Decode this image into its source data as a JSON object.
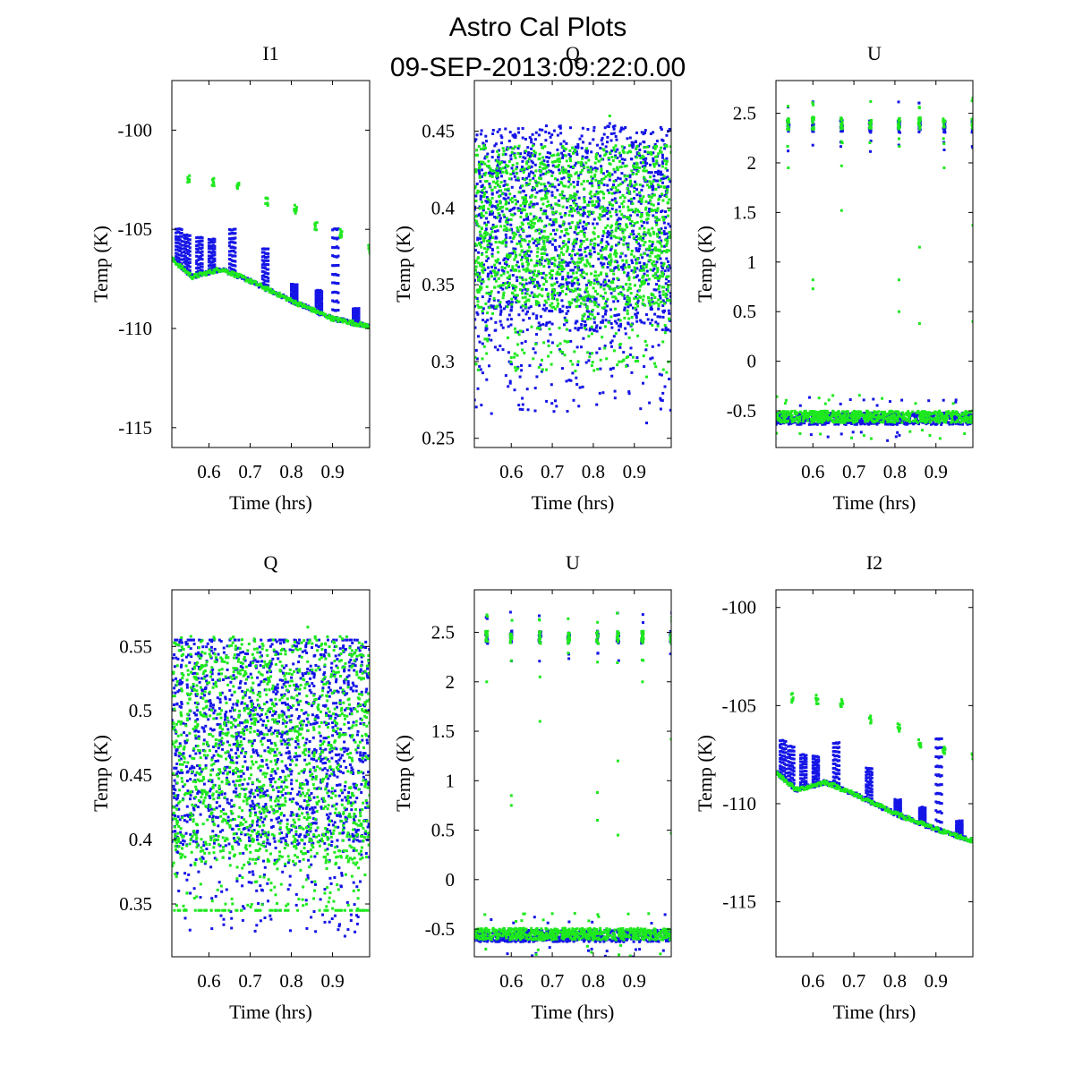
{
  "figure": {
    "title": "Astro Cal Plots",
    "subtitle": "09-SEP-2013:09:22:0.00"
  },
  "colors": {
    "blue_series": "#1414e6",
    "green_series": "#1ee81e"
  },
  "chart_data": [
    {
      "type": "scatter",
      "title": "I1",
      "xlabel": "Time (hrs)",
      "ylabel": "Temp (K)",
      "xlim": [
        0.51,
        0.99
      ],
      "ylim": [
        -116,
        -97.5
      ],
      "xticks": [
        0.6,
        0.7,
        0.8,
        0.9
      ],
      "xtick_labels": [
        "0.6",
        "0.7",
        "0.8",
        "0.9"
      ],
      "yticks": [
        -100,
        -105,
        -110,
        -115
      ],
      "ytick_labels": [
        "-100",
        "-105",
        "-110",
        "-115"
      ],
      "pattern": "drift",
      "series": [
        {
          "name": "blue",
          "color": "#1414e6",
          "baseline": [
            [
              0.51,
              -106.5
            ],
            [
              0.56,
              -107.4
            ],
            [
              0.63,
              -107.0
            ],
            [
              0.7,
              -107.6
            ],
            [
              0.8,
              -108.6
            ],
            [
              0.9,
              -109.5
            ],
            [
              0.99,
              -109.9
            ]
          ],
          "spike_times": [
            0.52,
            0.54,
            0.57,
            0.6,
            0.65,
            0.73,
            0.8,
            0.86,
            0.9,
            0.95
          ],
          "spike_tops": [
            -105.0,
            -105.3,
            -105.4,
            -105.5,
            -105.0,
            -106.0,
            -107.8,
            -108.1,
            -105.0,
            -109.0
          ]
        },
        {
          "name": "green",
          "color": "#1ee81e",
          "baseline": [
            [
              0.51,
              -106.5
            ],
            [
              0.56,
              -107.4
            ],
            [
              0.63,
              -107.0
            ],
            [
              0.7,
              -107.6
            ],
            [
              0.8,
              -108.6
            ],
            [
              0.9,
              -109.5
            ],
            [
              0.99,
              -109.9
            ]
          ],
          "outlier_clusters": [
            [
              0.55,
              -102.5
            ],
            [
              0.61,
              -102.6
            ],
            [
              0.67,
              -102.8
            ],
            [
              0.74,
              -103.6
            ],
            [
              0.81,
              -104.0
            ],
            [
              0.86,
              -104.8
            ],
            [
              0.92,
              -105.2
            ],
            [
              0.99,
              -106.0
            ]
          ]
        }
      ]
    },
    {
      "type": "scatter",
      "title": "Q",
      "xlabel": "Time (hrs)",
      "ylabel": "Temp (K)",
      "xlim": [
        0.51,
        0.99
      ],
      "ylim": [
        0.244,
        0.483
      ],
      "xticks": [
        0.6,
        0.7,
        0.8,
        0.9
      ],
      "xtick_labels": [
        "0.6",
        "0.7",
        "0.8",
        "0.9"
      ],
      "yticks": [
        0.25,
        0.3,
        0.35,
        0.4,
        0.45
      ],
      "ytick_labels": [
        "0.25",
        "0.3",
        "0.35",
        "0.4",
        "0.45"
      ],
      "pattern": "band",
      "series": [
        {
          "name": "blue",
          "color": "#1414e6",
          "center": 0.38,
          "low": 0.32,
          "high": 0.44,
          "min_outlier": 0.26,
          "max_outlier": 0.455
        },
        {
          "name": "green",
          "color": "#1ee81e",
          "center": 0.375,
          "low": 0.335,
          "high": 0.43,
          "min_outlier": 0.29,
          "max_outlier": 0.46
        }
      ]
    },
    {
      "type": "scatter",
      "title": "U",
      "xlabel": "Time (hrs)",
      "ylabel": "Temp (K)",
      "xlim": [
        0.51,
        0.99
      ],
      "ylim": [
        -0.87,
        2.83
      ],
      "xticks": [
        0.6,
        0.7,
        0.8,
        0.9
      ],
      "xtick_labels": [
        "0.6",
        "0.7",
        "0.8",
        "0.9"
      ],
      "yticks": [
        -0.5,
        0,
        0.5,
        1,
        1.5,
        2,
        2.5
      ],
      "ytick_labels": [
        "-0.5",
        "0",
        "0.5",
        "1",
        "1.5",
        "2",
        "2.5"
      ],
      "pattern": "twolevel",
      "series": [
        {
          "name": "blue",
          "color": "#1414e6",
          "base_level": -0.58,
          "high_level": 2.37,
          "high_times": [
            0.54,
            0.6,
            0.67,
            0.74,
            0.81,
            0.86,
            0.92,
            0.99
          ]
        },
        {
          "name": "green",
          "color": "#1ee81e",
          "base_level": -0.56,
          "high_level": 2.4,
          "high_times": [
            0.54,
            0.6,
            0.67,
            0.74,
            0.81,
            0.86,
            0.92,
            0.99
          ],
          "stray_points": [
            [
              0.54,
              1.95
            ],
            [
              0.6,
              0.82
            ],
            [
              0.6,
              0.73
            ],
            [
              0.67,
              1.52
            ],
            [
              0.67,
              1.97
            ],
            [
              0.81,
              0.5
            ],
            [
              0.81,
              0.82
            ],
            [
              0.86,
              1.15
            ],
            [
              0.86,
              0.38
            ],
            [
              0.92,
              1.95
            ],
            [
              0.99,
              1.37
            ],
            [
              0.99,
              0.4
            ]
          ]
        }
      ]
    },
    {
      "type": "scatter",
      "title": "Q",
      "xlabel": "Time (hrs)",
      "ylabel": "Temp (K)",
      "xlim": [
        0.51,
        0.99
      ],
      "ylim": [
        0.309,
        0.594
      ],
      "xticks": [
        0.6,
        0.7,
        0.8,
        0.9
      ],
      "xtick_labels": [
        "0.6",
        "0.7",
        "0.8",
        "0.9"
      ],
      "yticks": [
        0.35,
        0.4,
        0.45,
        0.5,
        0.55
      ],
      "ytick_labels": [
        "0.35",
        "0.4",
        "0.45",
        "0.5",
        "0.55"
      ],
      "pattern": "band",
      "series": [
        {
          "name": "blue",
          "color": "#1414e6",
          "center": 0.47,
          "low": 0.395,
          "high": 0.545,
          "min_outlier": 0.325,
          "max_outlier": 0.555
        },
        {
          "name": "green",
          "color": "#1ee81e",
          "center": 0.465,
          "low": 0.38,
          "high": 0.54,
          "min_outlier": 0.345,
          "max_outlier": 0.565
        }
      ]
    },
    {
      "type": "scatter",
      "title": "U",
      "xlabel": "Time (hrs)",
      "ylabel": "Temp (K)",
      "xlim": [
        0.51,
        0.99
      ],
      "ylim": [
        -0.78,
        2.93
      ],
      "xticks": [
        0.6,
        0.7,
        0.8,
        0.9
      ],
      "xtick_labels": [
        "0.6",
        "0.7",
        "0.8",
        "0.9"
      ],
      "yticks": [
        -0.5,
        0,
        0.5,
        1,
        1.5,
        2,
        2.5
      ],
      "ytick_labels": [
        "-0.5",
        "0",
        "0.5",
        "1",
        "1.5",
        "2",
        "2.5"
      ],
      "pattern": "twolevel",
      "series": [
        {
          "name": "blue",
          "color": "#1414e6",
          "base_level": -0.57,
          "high_level": 2.45,
          "high_times": [
            0.54,
            0.6,
            0.67,
            0.74,
            0.81,
            0.86,
            0.92,
            0.99
          ]
        },
        {
          "name": "green",
          "color": "#1ee81e",
          "base_level": -0.55,
          "high_level": 2.45,
          "high_times": [
            0.54,
            0.6,
            0.67,
            0.74,
            0.81,
            0.86,
            0.92,
            0.99
          ],
          "stray_points": [
            [
              0.54,
              2.0
            ],
            [
              0.6,
              0.85
            ],
            [
              0.6,
              0.75
            ],
            [
              0.67,
              1.6
            ],
            [
              0.67,
              2.05
            ],
            [
              0.81,
              0.6
            ],
            [
              0.81,
              0.88
            ],
            [
              0.86,
              1.2
            ],
            [
              0.86,
              0.45
            ],
            [
              0.92,
              2.0
            ],
            [
              0.99,
              1.42
            ],
            [
              0.99,
              0.47
            ]
          ]
        }
      ]
    },
    {
      "type": "scatter",
      "title": "I2",
      "xlabel": "Time (hrs)",
      "ylabel": "Temp (K)",
      "xlim": [
        0.51,
        0.99
      ],
      "ylim": [
        -117.8,
        -99.1
      ],
      "xticks": [
        0.6,
        0.7,
        0.8,
        0.9
      ],
      "xtick_labels": [
        "0.6",
        "0.7",
        "0.8",
        "0.9"
      ],
      "yticks": [
        -100,
        -105,
        -110,
        -115
      ],
      "ytick_labels": [
        "-100",
        "-105",
        "-110",
        "-115"
      ],
      "pattern": "drift",
      "series": [
        {
          "name": "blue",
          "color": "#1414e6",
          "baseline": [
            [
              0.51,
              -108.4
            ],
            [
              0.56,
              -109.3
            ],
            [
              0.63,
              -108.9
            ],
            [
              0.7,
              -109.5
            ],
            [
              0.8,
              -110.5
            ],
            [
              0.9,
              -111.3
            ],
            [
              0.99,
              -111.9
            ]
          ],
          "spike_times": [
            0.52,
            0.54,
            0.57,
            0.6,
            0.65,
            0.73,
            0.8,
            0.86,
            0.9,
            0.95
          ],
          "spike_tops": [
            -106.8,
            -107.1,
            -107.5,
            -107.6,
            -106.9,
            -108.2,
            -109.8,
            -110.2,
            -106.7,
            -110.9
          ]
        },
        {
          "name": "green",
          "color": "#1ee81e",
          "baseline": [
            [
              0.51,
              -108.4
            ],
            [
              0.56,
              -109.3
            ],
            [
              0.63,
              -108.9
            ],
            [
              0.7,
              -109.5
            ],
            [
              0.8,
              -110.5
            ],
            [
              0.9,
              -111.3
            ],
            [
              0.99,
              -111.9
            ]
          ],
          "outlier_clusters": [
            [
              0.55,
              -104.6
            ],
            [
              0.61,
              -104.7
            ],
            [
              0.67,
              -104.9
            ],
            [
              0.74,
              -105.7
            ],
            [
              0.81,
              -106.1
            ],
            [
              0.86,
              -106.9
            ],
            [
              0.92,
              -107.3
            ],
            [
              0.99,
              -107.6
            ]
          ]
        }
      ]
    }
  ]
}
